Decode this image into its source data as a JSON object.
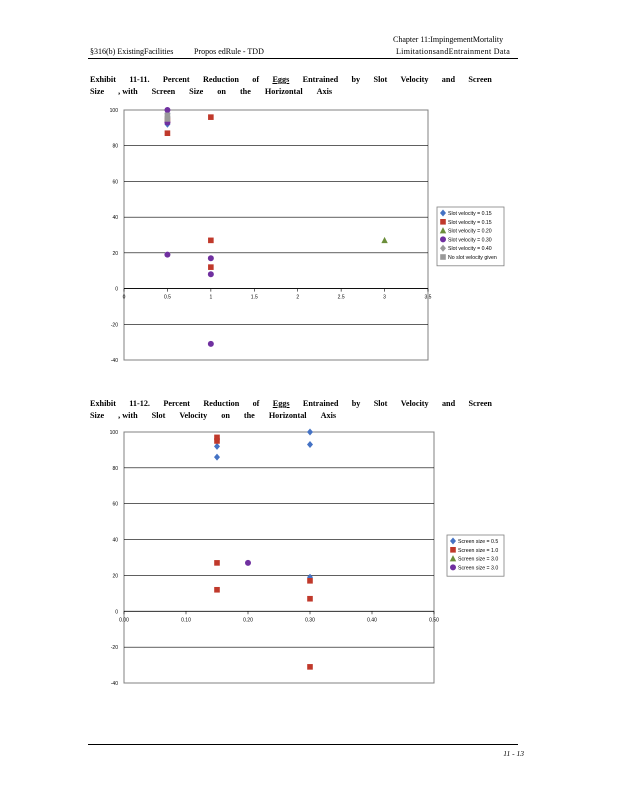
{
  "header": {
    "chapter": "Chapter 11:ImpingementMortality",
    "section": "§316(b) ExistingFacilities",
    "rule": "Propos edRule - TDD",
    "chapter_sub": "LimitationsandEntrainment Data"
  },
  "exhibit1": {
    "line1": [
      "Exhibit",
      "11-11.",
      "Percent",
      "Reduction",
      "of",
      "Eggs",
      "Entrained",
      "by",
      "Slot",
      "Velocity",
      "and",
      "Screen"
    ],
    "line2": [
      "Size",
      ", with",
      "Screen",
      "Size",
      "on",
      "the",
      "Horizontal",
      "Axis"
    ]
  },
  "exhibit2": {
    "line1": [
      "Exhibit",
      "11-12.",
      "Percent",
      "Reduction",
      "of",
      "Eggs",
      "Entrained",
      "by",
      "Slot",
      "Velocity",
      "and",
      "Screen"
    ],
    "line2": [
      "Size",
      ", with",
      "Slot",
      "Velocity",
      "on",
      "the",
      "Horizontal",
      "Axis"
    ]
  },
  "chart_data": [
    {
      "type": "scatter",
      "title": "",
      "xlabel": "",
      "ylabel": "",
      "xlim": [
        0,
        3.5
      ],
      "ylim": [
        -40,
        100
      ],
      "x_ticks": [
        "0",
        "0.5",
        "1",
        "1.5",
        "2",
        "2.5",
        "3",
        "3.5"
      ],
      "y_ticks": [
        "100",
        "80",
        "60",
        "40",
        "20",
        "0",
        "-20",
        "-40"
      ],
      "grid": "horizontal",
      "legend_position": "right",
      "series": [
        {
          "name": "Slot velocity = 0.15",
          "marker": "diamond",
          "color": "#4472C4",
          "points": [
            [
              0.5,
              92
            ],
            [
              0.5,
              98
            ]
          ]
        },
        {
          "name": "Slot velocity = 0.15",
          "marker": "square",
          "color": "#C0392B",
          "points": [
            [
              0.5,
              87
            ],
            [
              0.5,
              94
            ],
            [
              1,
              96
            ],
            [
              1,
              27
            ],
            [
              1,
              12
            ]
          ]
        },
        {
          "name": "Slot velocity = 0.20",
          "marker": "triangle",
          "color": "#6B8E3A",
          "points": [
            [
              3,
              27
            ]
          ]
        },
        {
          "name": "Slot velocity = 0.30",
          "marker": "circle",
          "color": "#7030A0",
          "points": [
            [
              0.5,
              19
            ],
            [
              0.5,
              100
            ],
            [
              0.5,
              93
            ],
            [
              1,
              17
            ],
            [
              1,
              8
            ],
            [
              1,
              -31
            ]
          ]
        },
        {
          "name": "Slot velocity = 0.40",
          "marker": "diamond",
          "color": "#999999",
          "points": [
            [
              0.5,
              96
            ]
          ]
        },
        {
          "name": "No slot velocity given",
          "marker": "square",
          "color": "#999999",
          "points": [
            [
              0.5,
              95
            ],
            [
              0.5,
              97
            ]
          ]
        }
      ]
    },
    {
      "type": "scatter",
      "title": "",
      "xlabel": "",
      "ylabel": "",
      "xlim": [
        0,
        0.5
      ],
      "ylim": [
        -40,
        100
      ],
      "x_ticks": [
        "0.00",
        "0.10",
        "0.20",
        "0.30",
        "0.40",
        "0.50"
      ],
      "y_ticks": [
        "100",
        "80",
        "60",
        "40",
        "20",
        "0",
        "-20",
        "-40"
      ],
      "grid": "horizontal",
      "legend_position": "right",
      "series": [
        {
          "name": "Screen size = 0.5",
          "marker": "diamond",
          "color": "#4472C4",
          "points": [
            [
              0.15,
              92
            ],
            [
              0.15,
              86
            ],
            [
              0.3,
              100
            ],
            [
              0.3,
              93
            ],
            [
              0.3,
              19
            ]
          ]
        },
        {
          "name": "Screen size = 1.0",
          "marker": "square",
          "color": "#C0392B",
          "points": [
            [
              0.15,
              97
            ],
            [
              0.15,
              95
            ],
            [
              0.15,
              27
            ],
            [
              0.15,
              12
            ],
            [
              0.3,
              17
            ],
            [
              0.3,
              7
            ],
            [
              0.3,
              -31
            ]
          ]
        },
        {
          "name": "Screen size = 3.0",
          "marker": "triangle",
          "color": "#6B8E3A",
          "points": []
        },
        {
          "name": "Screen size = 3.0",
          "marker": "circle",
          "color": "#7030A0",
          "points": [
            [
              0.2,
              27
            ]
          ]
        }
      ]
    }
  ],
  "page_number": "11 - 13"
}
